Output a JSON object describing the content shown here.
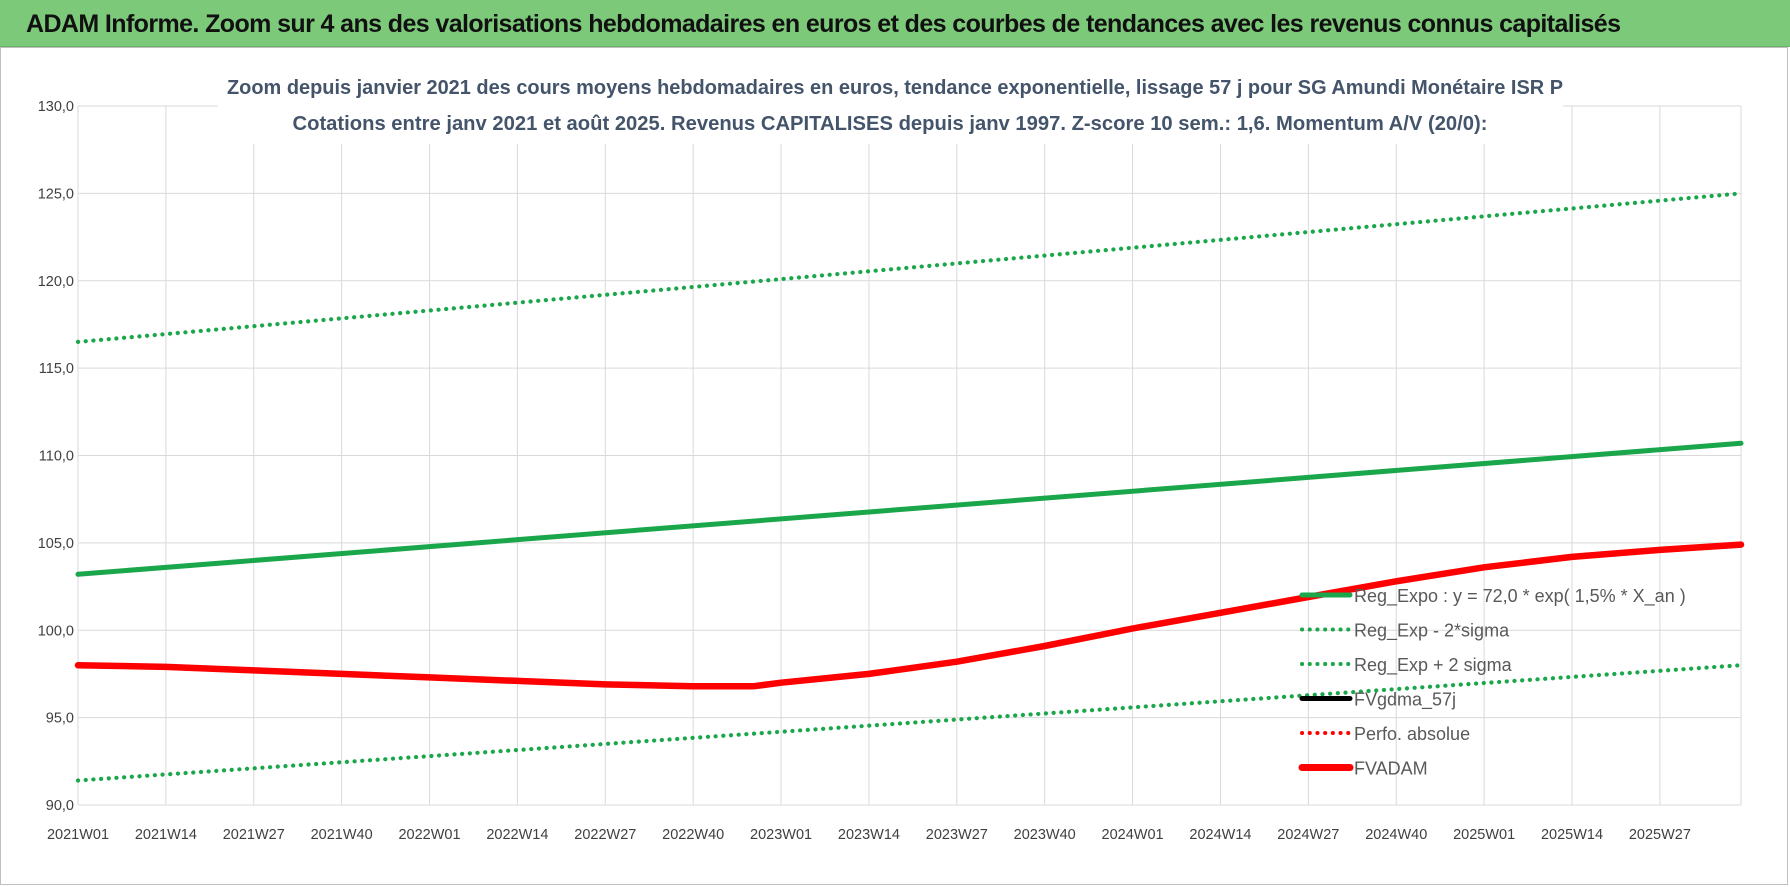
{
  "page": {
    "banner_title": "ADAM Informe. Zoom sur 4 ans des valorisations hebdomadaires en euros et des courbes de tendances avec les revenus connus capitalisés"
  },
  "colors": {
    "banner_bg": "#7dc97a",
    "green": "#1aa64a",
    "red": "#ff0000",
    "black": "#000000",
    "grid": "#d9d9d9",
    "text": "#404040",
    "title_text": "#44546a"
  },
  "chart_data": {
    "type": "line",
    "title_line1": "Zoom depuis janvier 2021 des cours moyens hebdomadaires en euros, tendance exponentielle, lissage 57 j pour SG Amundi Monétaire ISR P",
    "title_line2": "Cotations entre janv 2021 et août 2025. Revenus CAPITALISES depuis janv 1997. Z-score 10 sem.: 1,6. Momentum A/V (20/0):",
    "x_tick_labels": [
      "2021W01",
      "2021W14",
      "2021W27",
      "2021W40",
      "2022W01",
      "2022W14",
      "2022W27",
      "2022W40",
      "2023W01",
      "2023W14",
      "2023W27",
      "2023W40",
      "2024W01",
      "2024W14",
      "2024W27",
      "2024W40",
      "2025W01",
      "2025W14",
      "2025W27"
    ],
    "x_tick_step_weeks": 13,
    "x_num_weeks": 247,
    "y_tick_labels": [
      "90,0",
      "95,0",
      "100,0",
      "105,0",
      "110,0",
      "115,0",
      "120,0",
      "125,0",
      "130,0"
    ],
    "ylim": [
      90,
      130
    ],
    "y_step": 5,
    "grid": true,
    "legend_position": "right",
    "series": [
      {
        "name": "Reg_Expo : y = 72,0 * exp( 1,5% *  X_an )",
        "style": "solid-thick",
        "color": "#1aa64a",
        "points": [
          [
            0,
            103.2
          ],
          [
            246,
            110.7
          ]
        ]
      },
      {
        "name": "Reg_Exp - 2*sigma",
        "style": "dotted",
        "color": "#1aa64a",
        "points": [
          [
            0,
            91.4
          ],
          [
            246,
            98.0
          ]
        ]
      },
      {
        "name": "Reg_Exp + 2 sigma",
        "style": "dotted",
        "color": "#1aa64a",
        "points": [
          [
            0,
            116.5
          ],
          [
            246,
            125.0
          ]
        ]
      },
      {
        "name": "FVgdma_57j",
        "style": "solid",
        "color": "#000000",
        "points": [
          [
            0,
            98.0
          ],
          [
            13,
            97.9
          ],
          [
            26,
            97.7
          ],
          [
            39,
            97.5
          ],
          [
            52,
            97.3
          ],
          [
            65,
            97.1
          ],
          [
            78,
            96.9
          ],
          [
            91,
            96.8
          ],
          [
            100,
            96.8
          ],
          [
            104,
            97.0
          ],
          [
            117,
            97.5
          ],
          [
            130,
            98.2
          ],
          [
            143,
            99.1
          ],
          [
            156,
            100.1
          ],
          [
            169,
            101.0
          ],
          [
            182,
            101.9
          ],
          [
            195,
            102.8
          ],
          [
            208,
            103.6
          ],
          [
            221,
            104.2
          ],
          [
            234,
            104.6
          ],
          [
            246,
            104.9
          ]
        ]
      },
      {
        "name": "Perfo. absolue",
        "style": "dotted",
        "color": "#ff0000",
        "points": []
      },
      {
        "name": "FVADAM",
        "style": "solid-thick",
        "color": "#ff0000",
        "points": [
          [
            0,
            98.0
          ],
          [
            13,
            97.9
          ],
          [
            26,
            97.7
          ],
          [
            39,
            97.5
          ],
          [
            52,
            97.3
          ],
          [
            65,
            97.1
          ],
          [
            78,
            96.9
          ],
          [
            91,
            96.8
          ],
          [
            100,
            96.8
          ],
          [
            104,
            97.0
          ],
          [
            117,
            97.5
          ],
          [
            130,
            98.2
          ],
          [
            143,
            99.1
          ],
          [
            156,
            100.1
          ],
          [
            169,
            101.0
          ],
          [
            182,
            101.9
          ],
          [
            195,
            102.8
          ],
          [
            208,
            103.6
          ],
          [
            221,
            104.2
          ],
          [
            234,
            104.6
          ],
          [
            246,
            104.9
          ]
        ]
      }
    ]
  }
}
